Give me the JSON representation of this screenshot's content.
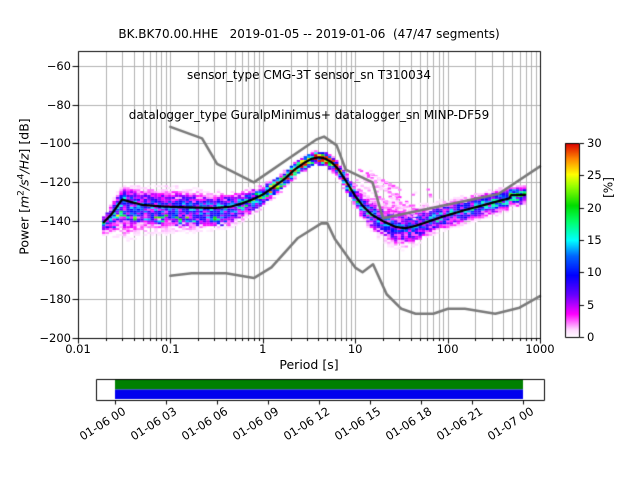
{
  "figure": {
    "title_line1": "BK.BK70.00.HHE   2019-01-05 -- 2019-01-06  (47/47 segments)",
    "title_line2": "sensor_type CMG-3T sensor_sn T310034",
    "title_line3": "datalogger_type GuralpMinimus+ datalogger_sn MINP-DF59"
  },
  "axes": {
    "xlabel": "Period [s]",
    "ylabel_segments": [
      {
        "text": "Power ["
      },
      {
        "text": "m",
        "italic": true
      },
      {
        "text": "2",
        "sup": true
      },
      {
        "text": "/",
        "italic": true
      },
      {
        "text": "s",
        "italic": true
      },
      {
        "text": "4",
        "sup": true
      },
      {
        "text": "/",
        "italic": true
      },
      {
        "text": "Hz",
        "italic": true
      },
      {
        "text": "] [dB]"
      }
    ],
    "xticks": [
      {
        "value": 0.01,
        "label": "0.01"
      },
      {
        "value": 0.1,
        "label": "0.1"
      },
      {
        "value": 1,
        "label": "1"
      },
      {
        "value": 10,
        "label": "10"
      },
      {
        "value": 100,
        "label": "100"
      },
      {
        "value": 1000,
        "label": "1000"
      }
    ],
    "yticks": [
      {
        "value": -60,
        "label": "−60"
      },
      {
        "value": -80,
        "label": "−80"
      },
      {
        "value": -100,
        "label": "−100"
      },
      {
        "value": -120,
        "label": "−120"
      },
      {
        "value": -140,
        "label": "−140"
      },
      {
        "value": -160,
        "label": "−160"
      },
      {
        "value": -180,
        "label": "−180"
      },
      {
        "value": -200,
        "label": "−200"
      }
    ]
  },
  "colorbar": {
    "label": "[%]",
    "ticks": [
      {
        "value": 0,
        "label": "0"
      },
      {
        "value": 5,
        "label": "5"
      },
      {
        "value": 10,
        "label": "10"
      },
      {
        "value": 15,
        "label": "15"
      },
      {
        "value": 20,
        "label": "20"
      },
      {
        "value": 25,
        "label": "25"
      },
      {
        "value": 30,
        "label": "30"
      }
    ],
    "max_percent": 30,
    "colormap": [
      [
        0.0,
        "#ffffff"
      ],
      [
        0.04,
        "#ffd9ff"
      ],
      [
        0.12,
        "#ff00ff"
      ],
      [
        0.22,
        "#6600ff"
      ],
      [
        0.32,
        "#0000ff"
      ],
      [
        0.42,
        "#0066ff"
      ],
      [
        0.5,
        "#00ffff"
      ],
      [
        0.6,
        "#00ff66"
      ],
      [
        0.68,
        "#00dd00"
      ],
      [
        0.78,
        "#99ff00"
      ],
      [
        0.84,
        "#ffff00"
      ],
      [
        0.92,
        "#ff8800"
      ],
      [
        1.0,
        "#dd0000"
      ]
    ]
  },
  "timeline": {
    "labels": [
      "01-06 00",
      "01-06 03",
      "01-06 06",
      "01-06 09",
      "01-06 12",
      "01-06 15",
      "01-06 18",
      "01-06 21",
      "01-07 00"
    ],
    "coverage_top_color": "#008000",
    "coverage_bottom_color": "#0000ee"
  },
  "chart_data": {
    "type": "heatmap",
    "title": "BK.BK70.00.HHE   2019-01-05 -- 2019-01-06  (47/47 segments)",
    "subtitle1": "sensor_type CMG-3T sensor_sn T310034",
    "subtitle2": "datalogger_type GuralpMinimus+ datalogger_sn MINP-DF59",
    "station_id": "BK.BK70.00.HHE",
    "date_range": "2019-01-05 -- 2019-01-06",
    "segments": "47/47",
    "xlabel": "Period [s]",
    "ylabel": "Power [m2/s4/Hz] [dB]",
    "xscale": "log",
    "xlim": [
      0.01,
      1000
    ],
    "ylim": [
      -200,
      -52.5
    ],
    "grid": true,
    "colorbar_label": "[%]",
    "colorbar_range": [
      0,
      30
    ],
    "period_step_octaves": 0.125,
    "db_bin_width": 1,
    "histogram_seed": 42,
    "mode_curve": [
      [
        0.019,
        -140.5
      ],
      [
        0.023,
        -136.5
      ],
      [
        0.03,
        -128.8
      ],
      [
        0.038,
        -130.2
      ],
      [
        0.05,
        -131.6
      ],
      [
        0.08,
        -132.4
      ],
      [
        0.12,
        -132.7
      ],
      [
        0.2,
        -133.0
      ],
      [
        0.3,
        -133.2
      ],
      [
        0.45,
        -132.5
      ],
      [
        0.6,
        -130.8
      ],
      [
        0.8,
        -128.5
      ],
      [
        1.0,
        -126.3
      ],
      [
        1.3,
        -122.5
      ],
      [
        1.7,
        -118.5
      ],
      [
        2.2,
        -113.5
      ],
      [
        2.8,
        -110.0
      ],
      [
        3.4,
        -107.8
      ],
      [
        4.0,
        -107.2
      ],
      [
        4.6,
        -107.6
      ],
      [
        5.5,
        -109.5
      ],
      [
        6.5,
        -113.0
      ],
      [
        8.0,
        -119.5
      ],
      [
        10.0,
        -127.0
      ],
      [
        12.0,
        -132.0
      ],
      [
        15.0,
        -136.5
      ],
      [
        20.0,
        -140.0
      ],
      [
        27.0,
        -142.8
      ],
      [
        34.0,
        -143.6
      ],
      [
        42.0,
        -142.8
      ],
      [
        55.0,
        -141.0
      ],
      [
        70.0,
        -139.3
      ],
      [
        90.0,
        -137.5
      ],
      [
        120.0,
        -135.8
      ],
      [
        160.0,
        -134.0
      ],
      [
        220.0,
        -132.3
      ],
      [
        300.0,
        -130.6
      ],
      [
        400.0,
        -129.0
      ],
      [
        465.0,
        -128.3
      ],
      [
        485.0,
        -126.6
      ],
      [
        600.0,
        -126.5
      ],
      [
        690.0,
        -126.4
      ]
    ],
    "band": [
      [
        0.019,
        4,
        7,
        11
      ],
      [
        0.025,
        7,
        14,
        10
      ],
      [
        0.032,
        8.5,
        22,
        9
      ],
      [
        0.05,
        10,
        16,
        8
      ],
      [
        0.1,
        11,
        14.5,
        8
      ],
      [
        0.2,
        10,
        13,
        9
      ],
      [
        0.35,
        9,
        12,
        9
      ],
      [
        0.6,
        7,
        10,
        11
      ],
      [
        1.0,
        5.5,
        7,
        16
      ],
      [
        1.6,
        4.5,
        5.5,
        22
      ],
      [
        2.5,
        4,
        4.5,
        27
      ],
      [
        4.0,
        3.8,
        4.5,
        30
      ],
      [
        5.5,
        4,
        5,
        26
      ],
      [
        8.0,
        5,
        6,
        16
      ],
      [
        12,
        7,
        8,
        11
      ],
      [
        18,
        9.5,
        10.5,
        9
      ],
      [
        25,
        13.5,
        12,
        8
      ],
      [
        34,
        13,
        12,
        8
      ],
      [
        45,
        12,
        11,
        9
      ],
      [
        60,
        10,
        8.5,
        10
      ],
      [
        100,
        8.5,
        8,
        10
      ],
      [
        150,
        8,
        8,
        10
      ],
      [
        250,
        7.5,
        7.5,
        11
      ],
      [
        400,
        7,
        7,
        12
      ],
      [
        550,
        5.5,
        7,
        14
      ],
      [
        690,
        5,
        6.5,
        14
      ]
    ],
    "outliers": {
      "period_range": [
        9,
        60
      ],
      "db_max": -113,
      "streaks": 14,
      "dots": 45
    },
    "noise_models": {
      "nhnm": [
        [
          0.1,
          -91.5
        ],
        [
          0.22,
          -97.4
        ],
        [
          0.32,
          -110.5
        ],
        [
          0.8,
          -120.0
        ],
        [
          3.8,
          -98.0
        ],
        [
          4.6,
          -96.5
        ],
        [
          6.3,
          -101.0
        ],
        [
          7.9,
          -113.5
        ],
        [
          15.4,
          -120.0
        ],
        [
          20.0,
          -138.5
        ],
        [
          354.8,
          -126.0
        ],
        [
          1000.0,
          -111.8
        ]
      ],
      "nlnm": [
        [
          0.1,
          -168.0
        ],
        [
          0.17,
          -166.7
        ],
        [
          0.4,
          -166.7
        ],
        [
          0.8,
          -169.2
        ],
        [
          1.24,
          -163.7
        ],
        [
          2.4,
          -148.6
        ],
        [
          4.3,
          -141.1
        ],
        [
          5.0,
          -141.1
        ],
        [
          6.0,
          -149.0
        ],
        [
          10.0,
          -163.8
        ],
        [
          12.0,
          -166.2
        ],
        [
          15.6,
          -162.1
        ],
        [
          21.9,
          -177.5
        ],
        [
          31.6,
          -185.0
        ],
        [
          45.0,
          -187.5
        ],
        [
          70.0,
          -187.5
        ],
        [
          101.0,
          -185.0
        ],
        [
          154.0,
          -185.0
        ],
        [
          328.0,
          -187.5
        ],
        [
          600.0,
          -184.4
        ],
        [
          1000.0,
          -178.5
        ]
      ]
    },
    "colors": {
      "grid": "#b0b0b0",
      "noise_model": "#7a7a7a",
      "mode_line": "#000000",
      "spine": "#000000"
    }
  }
}
